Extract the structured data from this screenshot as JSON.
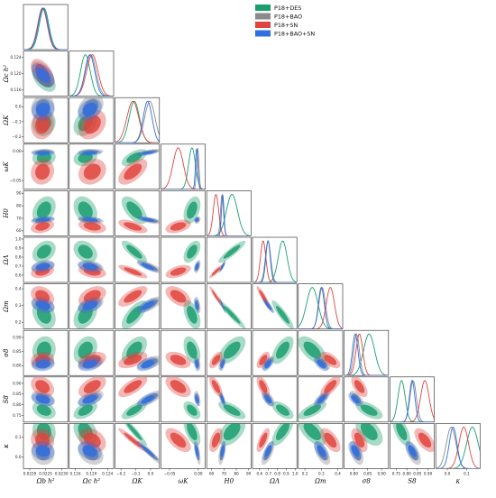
{
  "chart_data": {
    "type": "triangle-corner",
    "colors": {
      "P18+DES": "#1b9e6e",
      "P18+BAO": "#8a8a8a",
      "P18+SN": "#e0443e",
      "P18+BAO+SN": "#2f6fe0"
    },
    "legend": {
      "placement": "top-right",
      "entries": [
        "P18+DES",
        "P18+BAO",
        "P18+SN",
        "P18+BAO+SN"
      ]
    },
    "params": [
      {
        "key": "obh2",
        "label": "Ω_b h²",
        "ticks": [
          0.022,
          0.0225,
          0.023
        ],
        "tick_labels": [
          "0.0220",
          "0.0225",
          "0.0230"
        ],
        "range": [
          0.0218,
          0.0232
        ]
      },
      {
        "key": "och2",
        "label": "Ω_c h²",
        "ticks": [
          0.116,
          0.12,
          0.124
        ],
        "tick_labels": [
          "0.116",
          "0.120",
          "0.124"
        ],
        "range": [
          0.1145,
          0.1255
        ]
      },
      {
        "key": "ok",
        "label": "Ω_K",
        "ticks": [
          -0.2,
          -0.1,
          0.0
        ],
        "tick_labels": [
          "−0.2",
          "−0.1",
          "0.0"
        ],
        "range": [
          -0.24,
          0.06
        ]
      },
      {
        "key": "wk",
        "label": "ω_K",
        "ticks": [
          -0.05,
          0.0
        ],
        "tick_labels": [
          "−0.05",
          "0.00"
        ],
        "range": [
          -0.065,
          0.012
        ]
      },
      {
        "key": "h0",
        "label": "H_0",
        "ticks": [
          60,
          70,
          80,
          90
        ],
        "tick_labels": [
          "60",
          "70",
          "80",
          "90"
        ],
        "range": [
          56,
          92
        ]
      },
      {
        "key": "ol",
        "label": "Ω_Λ",
        "ticks": [
          0.6,
          0.7,
          0.8,
          0.9,
          1.0
        ],
        "tick_labels": [
          "0.6",
          "0.7",
          "0.8",
          "0.9",
          "1.0"
        ],
        "range": [
          0.52,
          1.02
        ]
      },
      {
        "key": "om",
        "label": "Ω_m",
        "ticks": [
          0.2,
          0.3,
          0.4
        ],
        "tick_labels": [
          "0.2",
          "0.3",
          "0.4"
        ],
        "range": [
          0.16,
          0.43
        ]
      },
      {
        "key": "s8",
        "label": "σ_8",
        "ticks": [
          0.8,
          0.85,
          0.9
        ],
        "tick_labels": [
          "0.80",
          "0.85",
          "0.90"
        ],
        "range": [
          0.765,
          0.925
        ]
      },
      {
        "key": "S8",
        "label": "S_8",
        "ticks": [
          0.75,
          0.8,
          0.85,
          0.9
        ],
        "tick_labels": [
          "0.75",
          "0.80",
          "0.85",
          "0.90"
        ],
        "range": [
          0.72,
          0.93
        ]
      },
      {
        "key": "kap",
        "label": "κ",
        "ticks": [
          0.0,
          0.1
        ],
        "tick_labels": [
          "0.0",
          "0.1"
        ],
        "range": [
          -0.06,
          0.17
        ]
      }
    ],
    "series": [
      {
        "name": "P18+DES",
        "mean": [
          0.02245,
          0.1185,
          -0.11,
          -0.011,
          76.5,
          0.86,
          0.245,
          0.855,
          0.775,
          0.13
        ],
        "sd": [
          0.00015,
          0.0012,
          0.035,
          0.006,
          4.5,
          0.05,
          0.035,
          0.02,
          0.017,
          0.03
        ]
      },
      {
        "name": "P18+BAO",
        "mean": [
          0.02241,
          0.1198,
          -0.005,
          -0.001,
          68.4,
          0.695,
          0.305,
          0.81,
          0.83,
          0.02
        ],
        "sd": [
          0.00015,
          0.0013,
          0.035,
          0.002,
          1.2,
          0.03,
          0.02,
          0.01,
          0.015,
          0.025
        ]
      },
      {
        "name": "P18+SN",
        "mean": [
          0.0224,
          0.1202,
          -0.12,
          -0.035,
          63.5,
          0.64,
          0.355,
          0.82,
          0.885,
          0.085
        ],
        "sd": [
          0.00015,
          0.0014,
          0.04,
          0.009,
          2.2,
          0.03,
          0.025,
          0.012,
          0.02,
          0.025
        ]
      },
      {
        "name": "P18+BAO+SN",
        "mean": [
          0.02242,
          0.1196,
          -0.02,
          -0.003,
          69.0,
          0.695,
          0.3,
          0.805,
          0.825,
          0.03
        ],
        "sd": [
          0.00015,
          0.0012,
          0.03,
          0.002,
          1.0,
          0.025,
          0.018,
          0.01,
          0.013,
          0.02
        ]
      }
    ],
    "corr": [
      [
        1,
        -0.5,
        0.1,
        0.1,
        0.3,
        0.3,
        -0.3,
        0.1,
        -0.3,
        -0.1
      ],
      [
        -0.5,
        1,
        0.3,
        0.2,
        -0.3,
        -0.3,
        0.4,
        0.3,
        0.5,
        -0.3
      ],
      [
        0.1,
        0.3,
        1,
        0.6,
        -0.6,
        -0.8,
        0.7,
        0.5,
        0.7,
        -0.95
      ],
      [
        0.1,
        0.2,
        0.6,
        1,
        0.4,
        0.5,
        -0.5,
        -0.4,
        -0.5,
        -0.6
      ],
      [
        0.3,
        -0.3,
        -0.6,
        0.4,
        1,
        0.9,
        -0.95,
        0.6,
        -0.7,
        0.5
      ],
      [
        0.3,
        -0.3,
        -0.8,
        0.5,
        0.9,
        1,
        -0.9,
        0.6,
        -0.6,
        0.7
      ],
      [
        -0.3,
        0.4,
        0.7,
        -0.5,
        -0.95,
        -0.9,
        1,
        -0.6,
        0.7,
        -0.6
      ],
      [
        0.1,
        0.3,
        0.5,
        -0.4,
        0.6,
        0.6,
        -0.6,
        1,
        -0.6,
        -0.5
      ],
      [
        -0.3,
        0.5,
        0.7,
        -0.5,
        -0.7,
        -0.6,
        0.7,
        -0.6,
        1,
        -0.6
      ],
      [
        -0.1,
        -0.3,
        -0.95,
        -0.6,
        0.5,
        0.7,
        -0.6,
        -0.5,
        -0.6,
        1
      ]
    ]
  }
}
